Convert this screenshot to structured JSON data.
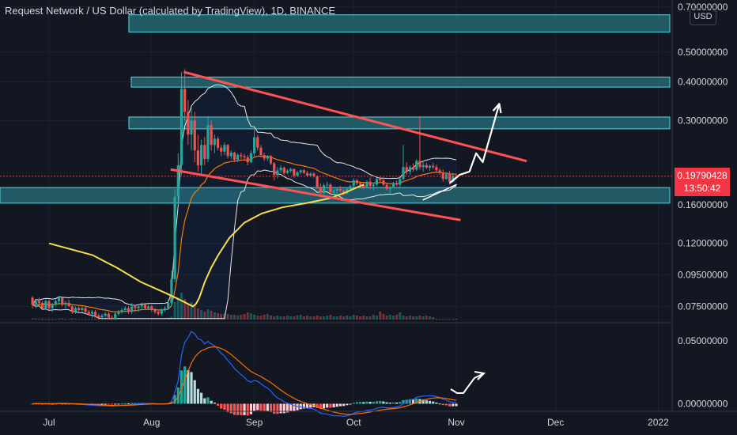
{
  "header": {
    "title": "Request Network / US Dollar (calculated by TradingView), 1D, BINANCE",
    "currency_badge": "USD"
  },
  "last_price": {
    "price": "0.19790428",
    "countdown": "13:50:42",
    "color": "#f23645"
  },
  "colors": {
    "background": "#131722",
    "up_candle": "#26a69a",
    "down_candle": "#ef5350",
    "zone_fill": "#2d8f9b",
    "zone_border": "#5ad4e0",
    "sma200": "#f7dd4a",
    "ema_orange": "#f57c00",
    "bollinger": "#e8e8e8",
    "macd_line": "#2962ff",
    "signal_line": "#ff6d00",
    "trend_line": "#ff5252",
    "projection": "#ffffff"
  },
  "chart_data": {
    "type": "candlestick",
    "title": "Request Network / US Dollar (calculated by TradingView), 1D, BINANCE",
    "y_scale": "log",
    "ylim": [
      0.068,
      0.72
    ],
    "price_ticks": [
      "0.70000000",
      "0.50000000",
      "0.40000000",
      "0.30000000",
      "0.16000000",
      "0.12000000",
      "0.09500000",
      "0.07500000"
    ],
    "x_ticks": [
      "Jul",
      "Aug",
      "Sep",
      "Oct",
      "Nov",
      "Dec",
      "2022"
    ],
    "zones": [
      {
        "low": 0.58,
        "high": 0.66
      },
      {
        "low": 0.385,
        "high": 0.415
      },
      {
        "low": 0.282,
        "high": 0.308
      },
      {
        "low": 0.162,
        "high": 0.182
      }
    ],
    "channel": {
      "upper": [
        {
          "date": "2021-08-11",
          "price": 0.43
        },
        {
          "date": "2021-11-22",
          "price": 0.222
        }
      ],
      "lower": [
        {
          "date": "2021-08-07",
          "price": 0.208
        },
        {
          "date": "2021-11-02",
          "price": 0.143
        }
      ],
      "support": [
        {
          "date": "2021-10-22",
          "price": 0.166
        },
        {
          "date": "2021-11-01",
          "price": 0.186
        }
      ]
    },
    "projection": [
      {
        "date": "2021-10-30",
        "price": 0.188
      },
      {
        "date": "2021-11-02",
        "price": 0.2
      },
      {
        "date": "2021-11-05",
        "price": 0.205
      },
      {
        "date": "2021-11-07",
        "price": 0.235
      },
      {
        "date": "2021-11-09",
        "price": 0.22
      },
      {
        "date": "2021-11-14",
        "price": 0.34
      }
    ],
    "candles": [
      [
        "2021-06-26",
        0.08,
        0.081,
        0.074,
        0.076
      ],
      [
        "2021-06-27",
        0.076,
        0.079,
        0.074,
        0.078
      ],
      [
        "2021-06-28",
        0.078,
        0.08,
        0.075,
        0.077
      ],
      [
        "2021-06-29",
        0.077,
        0.078,
        0.073,
        0.074
      ],
      [
        "2021-06-30",
        0.074,
        0.079,
        0.073,
        0.078
      ],
      [
        "2021-07-01",
        0.078,
        0.079,
        0.073,
        0.074
      ],
      [
        "2021-07-02",
        0.074,
        0.077,
        0.072,
        0.076
      ],
      [
        "2021-07-03",
        0.076,
        0.079,
        0.075,
        0.078
      ],
      [
        "2021-07-04",
        0.078,
        0.081,
        0.076,
        0.08
      ],
      [
        "2021-07-05",
        0.08,
        0.08,
        0.075,
        0.076
      ],
      [
        "2021-07-06",
        0.076,
        0.078,
        0.074,
        0.077
      ],
      [
        "2021-07-07",
        0.077,
        0.079,
        0.075,
        0.075
      ],
      [
        "2021-07-08",
        0.075,
        0.076,
        0.071,
        0.072
      ],
      [
        "2021-07-09",
        0.072,
        0.075,
        0.071,
        0.074
      ],
      [
        "2021-07-10",
        0.074,
        0.075,
        0.072,
        0.073
      ],
      [
        "2021-07-11",
        0.073,
        0.075,
        0.072,
        0.074
      ],
      [
        "2021-07-12",
        0.074,
        0.075,
        0.071,
        0.072
      ],
      [
        "2021-07-13",
        0.072,
        0.073,
        0.07,
        0.071
      ],
      [
        "2021-07-14",
        0.071,
        0.073,
        0.069,
        0.072
      ],
      [
        "2021-07-15",
        0.072,
        0.073,
        0.069,
        0.07
      ],
      [
        "2021-07-16",
        0.07,
        0.071,
        0.068,
        0.069
      ],
      [
        "2021-07-17",
        0.069,
        0.071,
        0.068,
        0.07
      ],
      [
        "2021-07-18",
        0.07,
        0.072,
        0.069,
        0.071
      ],
      [
        "2021-07-19",
        0.071,
        0.072,
        0.068,
        0.069
      ],
      [
        "2021-07-20",
        0.069,
        0.07,
        0.068,
        0.068
      ],
      [
        "2021-07-21",
        0.068,
        0.072,
        0.068,
        0.071
      ],
      [
        "2021-07-22",
        0.071,
        0.073,
        0.07,
        0.072
      ],
      [
        "2021-07-23",
        0.072,
        0.074,
        0.071,
        0.073
      ],
      [
        "2021-07-24",
        0.073,
        0.075,
        0.072,
        0.074
      ],
      [
        "2021-07-25",
        0.074,
        0.075,
        0.071,
        0.072
      ],
      [
        "2021-07-26",
        0.072,
        0.077,
        0.071,
        0.075
      ],
      [
        "2021-07-27",
        0.075,
        0.076,
        0.072,
        0.074
      ],
      [
        "2021-07-28",
        0.074,
        0.076,
        0.072,
        0.075
      ],
      [
        "2021-07-29",
        0.075,
        0.077,
        0.073,
        0.076
      ],
      [
        "2021-07-30",
        0.076,
        0.077,
        0.073,
        0.074
      ],
      [
        "2021-07-31",
        0.074,
        0.076,
        0.073,
        0.075
      ],
      [
        "2021-08-01",
        0.075,
        0.076,
        0.072,
        0.073
      ],
      [
        "2021-08-02",
        0.073,
        0.074,
        0.071,
        0.072
      ],
      [
        "2021-08-03",
        0.072,
        0.073,
        0.07,
        0.071
      ],
      [
        "2021-08-04",
        0.071,
        0.074,
        0.07,
        0.073
      ],
      [
        "2021-08-05",
        0.073,
        0.075,
        0.072,
        0.074
      ],
      [
        "2021-08-06",
        0.074,
        0.079,
        0.073,
        0.077
      ],
      [
        "2021-08-07",
        0.077,
        0.098,
        0.076,
        0.092
      ],
      [
        "2021-08-08",
        0.092,
        0.18,
        0.09,
        0.17
      ],
      [
        "2021-08-09",
        0.17,
        0.235,
        0.16,
        0.215
      ],
      [
        "2021-08-10",
        0.215,
        0.43,
        0.2,
        0.38
      ],
      [
        "2021-08-11",
        0.38,
        0.44,
        0.3,
        0.32
      ],
      [
        "2021-08-12",
        0.32,
        0.35,
        0.25,
        0.27
      ],
      [
        "2021-08-13",
        0.27,
        0.33,
        0.24,
        0.3
      ],
      [
        "2021-08-14",
        0.3,
        0.32,
        0.22,
        0.24
      ],
      [
        "2021-08-15",
        0.24,
        0.27,
        0.205,
        0.215
      ],
      [
        "2021-08-16",
        0.215,
        0.26,
        0.2,
        0.25
      ],
      [
        "2021-08-17",
        0.25,
        0.265,
        0.215,
        0.225
      ],
      [
        "2021-08-18",
        0.225,
        0.31,
        0.22,
        0.29
      ],
      [
        "2021-08-19",
        0.29,
        0.3,
        0.24,
        0.25
      ],
      [
        "2021-08-20",
        0.25,
        0.27,
        0.235,
        0.262
      ],
      [
        "2021-08-21",
        0.262,
        0.266,
        0.24,
        0.245
      ],
      [
        "2021-08-22",
        0.245,
        0.25,
        0.23,
        0.238
      ],
      [
        "2021-08-23",
        0.238,
        0.255,
        0.232,
        0.25
      ],
      [
        "2021-08-24",
        0.25,
        0.252,
        0.226,
        0.23
      ],
      [
        "2021-08-25",
        0.23,
        0.24,
        0.225,
        0.236
      ],
      [
        "2021-08-26",
        0.236,
        0.238,
        0.22,
        0.224
      ],
      [
        "2021-08-27",
        0.224,
        0.235,
        0.22,
        0.232
      ],
      [
        "2021-08-28",
        0.232,
        0.236,
        0.225,
        0.23
      ],
      [
        "2021-08-29",
        0.23,
        0.234,
        0.222,
        0.228
      ],
      [
        "2021-08-30",
        0.228,
        0.232,
        0.215,
        0.22
      ],
      [
        "2021-08-31",
        0.22,
        0.24,
        0.218,
        0.235
      ],
      [
        "2021-09-01",
        0.235,
        0.28,
        0.23,
        0.265
      ],
      [
        "2021-09-02",
        0.265,
        0.27,
        0.24,
        0.245
      ],
      [
        "2021-09-03",
        0.245,
        0.25,
        0.228,
        0.232
      ],
      [
        "2021-09-04",
        0.232,
        0.236,
        0.222,
        0.226
      ],
      [
        "2021-09-05",
        0.226,
        0.232,
        0.222,
        0.23
      ],
      [
        "2021-09-06",
        0.23,
        0.232,
        0.215,
        0.218
      ],
      [
        "2021-09-07",
        0.218,
        0.22,
        0.192,
        0.2
      ],
      [
        "2021-09-08",
        0.2,
        0.212,
        0.195,
        0.207
      ],
      [
        "2021-09-09",
        0.207,
        0.215,
        0.203,
        0.211
      ],
      [
        "2021-09-10",
        0.211,
        0.213,
        0.2,
        0.203
      ],
      [
        "2021-09-11",
        0.203,
        0.209,
        0.201,
        0.206
      ],
      [
        "2021-09-12",
        0.206,
        0.211,
        0.203,
        0.209
      ],
      [
        "2021-09-13",
        0.209,
        0.21,
        0.196,
        0.199
      ],
      [
        "2021-09-14",
        0.199,
        0.206,
        0.197,
        0.204
      ],
      [
        "2021-09-15",
        0.204,
        0.208,
        0.201,
        0.207
      ],
      [
        "2021-09-16",
        0.207,
        0.209,
        0.201,
        0.203
      ],
      [
        "2021-09-17",
        0.203,
        0.206,
        0.197,
        0.199
      ],
      [
        "2021-09-18",
        0.199,
        0.204,
        0.197,
        0.202
      ],
      [
        "2021-09-19",
        0.202,
        0.204,
        0.196,
        0.198
      ],
      [
        "2021-09-20",
        0.198,
        0.199,
        0.18,
        0.183
      ],
      [
        "2021-09-21",
        0.183,
        0.188,
        0.17,
        0.175
      ],
      [
        "2021-09-22",
        0.175,
        0.188,
        0.173,
        0.185
      ],
      [
        "2021-09-23",
        0.185,
        0.19,
        0.181,
        0.186
      ],
      [
        "2021-09-24",
        0.186,
        0.188,
        0.172,
        0.176
      ],
      [
        "2021-09-25",
        0.176,
        0.18,
        0.172,
        0.178
      ],
      [
        "2021-09-26",
        0.178,
        0.182,
        0.17,
        0.18
      ],
      [
        "2021-09-27",
        0.18,
        0.184,
        0.176,
        0.178
      ],
      [
        "2021-09-28",
        0.178,
        0.18,
        0.172,
        0.174
      ],
      [
        "2021-09-29",
        0.174,
        0.182,
        0.173,
        0.18
      ],
      [
        "2021-09-30",
        0.18,
        0.186,
        0.178,
        0.184
      ],
      [
        "2021-10-01",
        0.184,
        0.195,
        0.182,
        0.192
      ],
      [
        "2021-10-02",
        0.192,
        0.194,
        0.185,
        0.188
      ],
      [
        "2021-10-03",
        0.188,
        0.19,
        0.183,
        0.186
      ],
      [
        "2021-10-04",
        0.186,
        0.19,
        0.18,
        0.182
      ],
      [
        "2021-10-05",
        0.182,
        0.192,
        0.181,
        0.19
      ],
      [
        "2021-10-06",
        0.19,
        0.196,
        0.18,
        0.184
      ],
      [
        "2021-10-07",
        0.184,
        0.188,
        0.178,
        0.186
      ],
      [
        "2021-10-08",
        0.186,
        0.196,
        0.184,
        0.194
      ],
      [
        "2021-10-09",
        0.194,
        0.198,
        0.19,
        0.192
      ],
      [
        "2021-10-10",
        0.192,
        0.196,
        0.184,
        0.186
      ],
      [
        "2021-10-11",
        0.186,
        0.188,
        0.178,
        0.18
      ],
      [
        "2021-10-12",
        0.18,
        0.185,
        0.174,
        0.183
      ],
      [
        "2021-10-13",
        0.183,
        0.19,
        0.181,
        0.188
      ],
      [
        "2021-10-14",
        0.188,
        0.192,
        0.184,
        0.186
      ],
      [
        "2021-10-15",
        0.186,
        0.196,
        0.183,
        0.194
      ],
      [
        "2021-10-16",
        0.194,
        0.25,
        0.192,
        0.212
      ],
      [
        "2021-10-17",
        0.212,
        0.22,
        0.2,
        0.205
      ],
      [
        "2021-10-18",
        0.205,
        0.215,
        0.2,
        0.212
      ],
      [
        "2021-10-19",
        0.212,
        0.218,
        0.205,
        0.208
      ],
      [
        "2021-10-20",
        0.208,
        0.225,
        0.206,
        0.222
      ],
      [
        "2021-10-21",
        0.222,
        0.31,
        0.208,
        0.212
      ],
      [
        "2021-10-22",
        0.212,
        0.222,
        0.205,
        0.215
      ],
      [
        "2021-10-23",
        0.215,
        0.219,
        0.209,
        0.211
      ],
      [
        "2021-10-24",
        0.211,
        0.216,
        0.206,
        0.214
      ],
      [
        "2021-10-25",
        0.214,
        0.219,
        0.209,
        0.212
      ],
      [
        "2021-10-26",
        0.212,
        0.216,
        0.204,
        0.207
      ],
      [
        "2021-10-27",
        0.207,
        0.21,
        0.2,
        0.203
      ],
      [
        "2021-10-28",
        0.203,
        0.208,
        0.19,
        0.194
      ],
      [
        "2021-10-29",
        0.194,
        0.204,
        0.193,
        0.201
      ],
      [
        "2021-10-30",
        0.201,
        0.206,
        0.186,
        0.19
      ],
      [
        "2021-10-31",
        0.19,
        0.203,
        0.189,
        0.199
      ],
      [
        "2021-11-01",
        0.199,
        0.202,
        0.194,
        0.198
      ]
    ],
    "volume": [
      1.5,
      1.2,
      1.0,
      1.4,
      1.2,
      1.1,
      1.3,
      1.0,
      1.2,
      1.5,
      1.1,
      1.0,
      1.4,
      1.2,
      1.0,
      1.1,
      1.3,
      1.0,
      1.2,
      1.1,
      1.4,
      1.0,
      1.1,
      1.3,
      1.2,
      1.0,
      1.1,
      1.2,
      1.4,
      1.0,
      1.1,
      1.3,
      1.2,
      1.0,
      1.1,
      1.2,
      1.4,
      1.0,
      1.1,
      1.3,
      1.2,
      1.5,
      3.5,
      22,
      28,
      34,
      26,
      20,
      22,
      18,
      14,
      12,
      10,
      13,
      11,
      9,
      8,
      7,
      8,
      7,
      6,
      6,
      5,
      6,
      7,
      9,
      8,
      6,
      5,
      5,
      6,
      7,
      5,
      4,
      5,
      4,
      4,
      5,
      4,
      4,
      5,
      6,
      4,
      5,
      4,
      4,
      5,
      4,
      4,
      5,
      6,
      4,
      4,
      5,
      4,
      5,
      4,
      6,
      5,
      4,
      5,
      4,
      4,
      6,
      5,
      10,
      7,
      5,
      6,
      5,
      6,
      9,
      5,
      4,
      5,
      4,
      4,
      5,
      4,
      5,
      4,
      3
    ],
    "sma200": [
      [
        -1000,
        0.12
      ],
      [
        -945,
        0.11
      ],
      [
        -914,
        0.1
      ],
      [
        -884,
        0.09
      ],
      [
        -851,
        0.0825
      ],
      [
        -829,
        0.0775
      ],
      [
        -818,
        0.075
      ],
      [
        -814,
        0.0765
      ],
      [
        -810,
        0.08
      ],
      [
        -803,
        0.09
      ],
      [
        -795,
        0.1
      ],
      [
        -786,
        0.11
      ],
      [
        -772,
        0.125
      ],
      [
        -753,
        0.14
      ],
      [
        -731,
        0.15
      ],
      [
        -705,
        0.157
      ],
      [
        -675,
        0.162
      ],
      [
        -645,
        0.168
      ],
      [
        -626,
        0.175
      ],
      [
        -611,
        0.182
      ],
      [
        -602,
        0.186
      ]
    ],
    "macd_ylim": [
      -0.006,
      0.062
    ],
    "macd_ticks": [
      "0.05000000",
      "0.00000000"
    ]
  }
}
